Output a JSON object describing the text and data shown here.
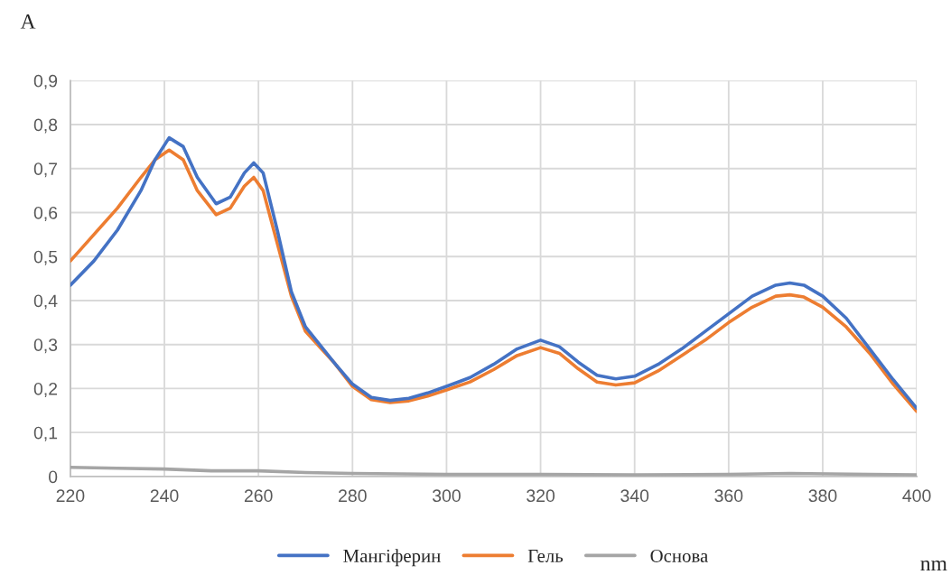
{
  "chart_data": {
    "type": "line",
    "xlabel": "nm",
    "ylabel": "A",
    "xlim": [
      220,
      400
    ],
    "xticks": [
      220,
      240,
      260,
      280,
      300,
      320,
      340,
      360,
      380,
      400
    ],
    "ylim": [
      0,
      0.9
    ],
    "yticks": [
      {
        "value": 0,
        "label": "0"
      },
      {
        "value": 0.1,
        "label": "0,1"
      },
      {
        "value": 0.2,
        "label": "0,2"
      },
      {
        "value": 0.3,
        "label": "0,3"
      },
      {
        "value": 0.4,
        "label": "0,4"
      },
      {
        "value": 0.5,
        "label": "0,5"
      },
      {
        "value": 0.6,
        "label": "0,6"
      },
      {
        "value": 0.7,
        "label": "0,7"
      },
      {
        "value": 0.8,
        "label": "0,8"
      },
      {
        "value": 0.9,
        "label": "0,9"
      }
    ],
    "grid": true,
    "legend": "bottom",
    "marker": "none",
    "line_style": "solid",
    "series": [
      {
        "name": "Мангіферин",
        "color": "#4472c4",
        "x": [
          220,
          225,
          230,
          235,
          238,
          241,
          244,
          247,
          251,
          254,
          257,
          259,
          261,
          264,
          267,
          270,
          273,
          276,
          280,
          284,
          288,
          292,
          296,
          300,
          305,
          310,
          315,
          320,
          324,
          328,
          332,
          336,
          340,
          345,
          350,
          355,
          360,
          365,
          370,
          373,
          376,
          380,
          385,
          390,
          395,
          400
        ],
        "values": [
          0.435,
          0.49,
          0.56,
          0.65,
          0.72,
          0.77,
          0.75,
          0.68,
          0.62,
          0.635,
          0.69,
          0.713,
          0.69,
          0.56,
          0.42,
          0.34,
          0.3,
          0.26,
          0.21,
          0.18,
          0.173,
          0.178,
          0.19,
          0.205,
          0.225,
          0.255,
          0.29,
          0.31,
          0.295,
          0.26,
          0.23,
          0.222,
          0.228,
          0.255,
          0.29,
          0.33,
          0.37,
          0.41,
          0.435,
          0.44,
          0.435,
          0.41,
          0.36,
          0.29,
          0.22,
          0.155
        ]
      },
      {
        "name": "Гель",
        "color": "#ed7d31",
        "x": [
          220,
          225,
          230,
          235,
          238,
          241,
          244,
          247,
          251,
          254,
          257,
          259,
          261,
          264,
          267,
          270,
          273,
          276,
          280,
          284,
          288,
          292,
          296,
          300,
          305,
          310,
          315,
          320,
          324,
          328,
          332,
          336,
          340,
          345,
          350,
          355,
          360,
          365,
          370,
          373,
          376,
          380,
          385,
          390,
          395,
          400
        ],
        "values": [
          0.49,
          0.55,
          0.61,
          0.68,
          0.72,
          0.742,
          0.72,
          0.65,
          0.595,
          0.61,
          0.66,
          0.68,
          0.65,
          0.53,
          0.41,
          0.33,
          0.295,
          0.26,
          0.205,
          0.175,
          0.168,
          0.172,
          0.183,
          0.197,
          0.215,
          0.243,
          0.275,
          0.293,
          0.28,
          0.245,
          0.215,
          0.208,
          0.213,
          0.24,
          0.275,
          0.31,
          0.35,
          0.385,
          0.41,
          0.413,
          0.408,
          0.385,
          0.34,
          0.28,
          0.21,
          0.148
        ]
      },
      {
        "name": "Основа",
        "color": "#a5a5a5",
        "x": [
          220,
          230,
          240,
          250,
          260,
          270,
          280,
          300,
          320,
          340,
          360,
          373,
          390,
          400
        ],
        "values": [
          0.021,
          0.019,
          0.017,
          0.013,
          0.013,
          0.009,
          0.007,
          0.005,
          0.005,
          0.004,
          0.005,
          0.007,
          0.005,
          0.004
        ]
      }
    ]
  }
}
